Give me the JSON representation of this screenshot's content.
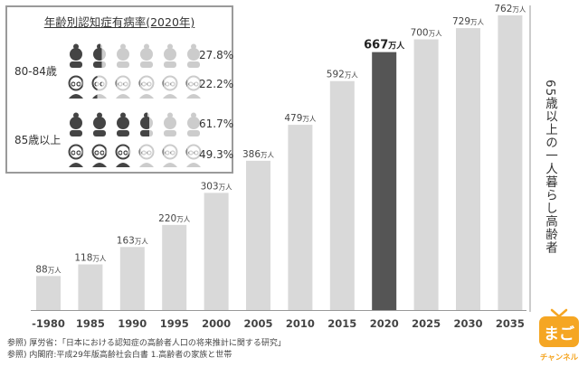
{
  "chart_data": {
    "type": "bar",
    "categories": [
      "-1980",
      "1985",
      "1990",
      "1995",
      "2000",
      "2005",
      "2010",
      "2015",
      "2020",
      "2025",
      "2030",
      "2035"
    ],
    "values": [
      88,
      118,
      163,
      220,
      303,
      386,
      479,
      592,
      667,
      700,
      729,
      762
    ],
    "value_unit": "万人",
    "highlight_category": "2020",
    "ylabel": "65歳以上の一人暮らし高齢者",
    "colors": {
      "bar": "#d9d9d9",
      "highlight": "#555555"
    },
    "ylim": [
      0,
      780
    ]
  },
  "inset": {
    "title": "年齢別認知症有病率(2020年)",
    "groups": [
      {
        "label": "80-84歳",
        "rows": [
          {
            "icon": "female-person-icon",
            "percent_text": "27.8%",
            "percent": 27.8
          },
          {
            "icon": "male-person-icon",
            "percent_text": "22.2%",
            "percent": 22.2
          }
        ]
      },
      {
        "label": "85歳以上",
        "rows": [
          {
            "icon": "female-person-icon",
            "percent_text": "61.7%",
            "percent": 61.7
          },
          {
            "icon": "male-person-icon",
            "percent_text": "49.3%",
            "percent": 49.3
          }
        ]
      }
    ],
    "colors": {
      "filled": "#444444",
      "empty": "#cccccc"
    }
  },
  "sources": [
    "参照) 厚労省：「日本における認知症の高齢者人口の将来推計に関する研究」",
    "参照) 内閣府:平成29年版高齢社会白書 1.高齢者の家族と世帯"
  ],
  "logo": {
    "line1": "まご",
    "line2": "チャンネル",
    "color": "#f5a623"
  }
}
